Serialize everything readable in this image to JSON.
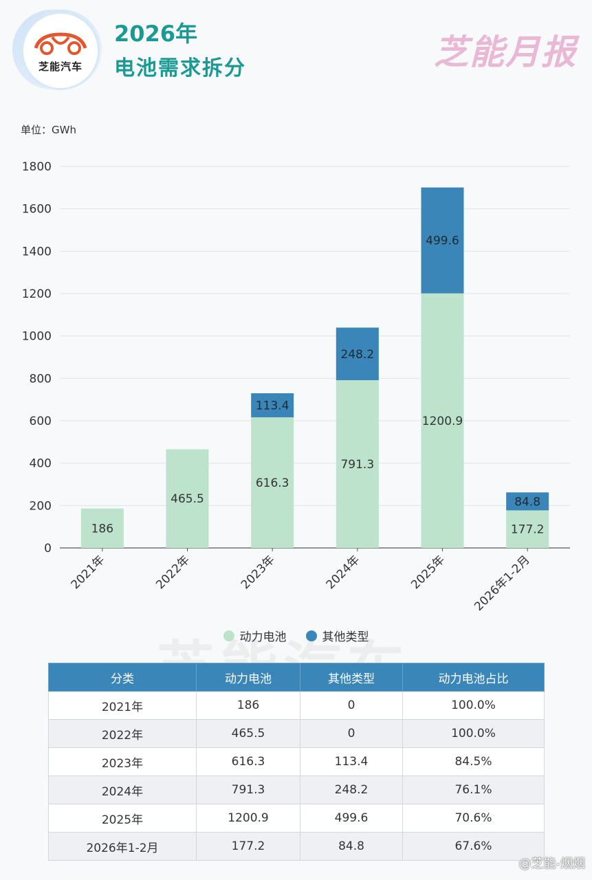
{
  "header": {
    "logo_text": "芝能汽车",
    "title_line1": "2026年",
    "title_line2": "电池需求拆分",
    "brand": "芝能月报"
  },
  "unit_label": "单位：GWh",
  "watermark": "芝能汽车",
  "footer": {
    "weibo": "@芝能-烟烟"
  },
  "colors": {
    "power": "#bde3cd",
    "other": "#3a86b8",
    "title": "#1a9a94"
  },
  "chart_data": {
    "type": "bar",
    "stacked": true,
    "categories": [
      "2021年",
      "2022年",
      "2023年",
      "2024年",
      "2025年",
      "2026年1-2月"
    ],
    "series": [
      {
        "name": "动力电池",
        "values": [
          186,
          465.5,
          616.3,
          791.3,
          1200.9,
          177.2
        ],
        "labels": [
          "186",
          "465.5",
          "616.3",
          "791.3",
          "1200.9",
          "177.2"
        ]
      },
      {
        "name": "其他类型",
        "values": [
          0,
          0,
          113.4,
          248.2,
          499.6,
          84.8
        ],
        "labels": [
          "",
          "",
          "113.4",
          "248.2",
          "499.6",
          "84.8"
        ]
      }
    ],
    "ylim": [
      0,
      1800
    ],
    "yticks": [
      0,
      200,
      400,
      600,
      800,
      1000,
      1200,
      1400,
      1600,
      1800
    ],
    "grid": true,
    "legend": "bottom-center"
  },
  "table": {
    "headers": [
      "分类",
      "动力电池",
      "其他类型",
      "动力电池占比"
    ],
    "rows": [
      [
        "2021年",
        "186",
        "0",
        "100.0%"
      ],
      [
        "2022年",
        "465.5",
        "0",
        "100.0%"
      ],
      [
        "2023年",
        "616.3",
        "113.4",
        "84.5%"
      ],
      [
        "2024年",
        "791.3",
        "248.2",
        "76.1%"
      ],
      [
        "2025年",
        "1200.9",
        "499.6",
        "70.6%"
      ],
      [
        "2026年1-2月",
        "177.2",
        "84.8",
        "67.6%"
      ]
    ]
  }
}
